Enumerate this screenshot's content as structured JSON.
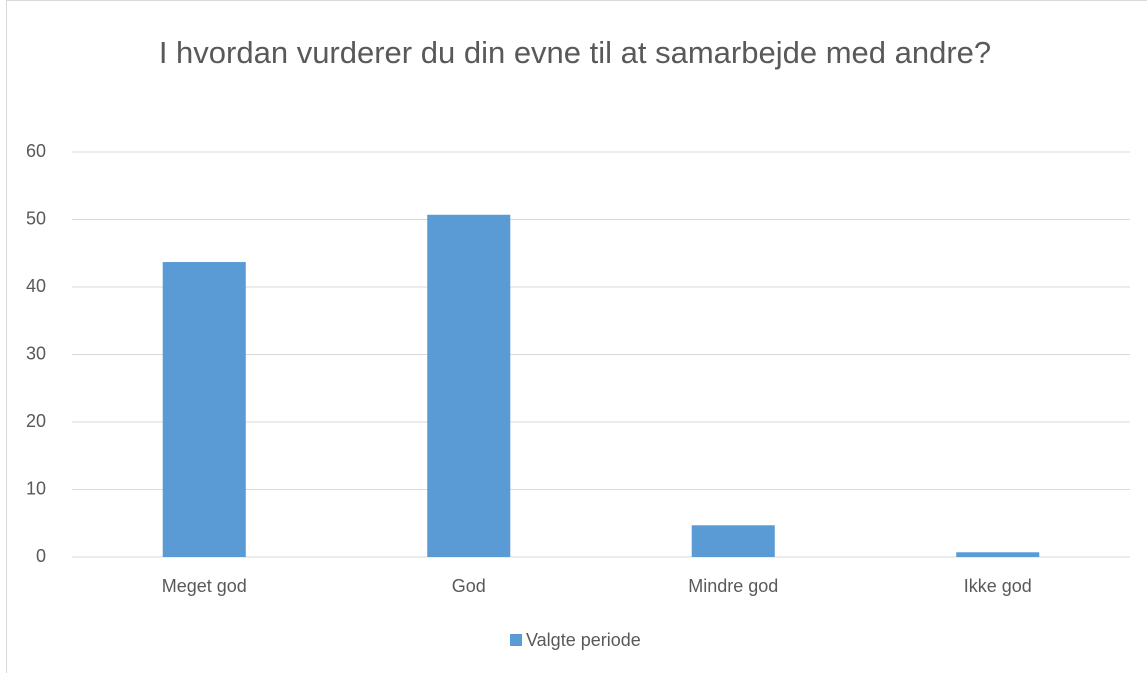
{
  "chart_data": {
    "type": "bar",
    "title": "I hvordan vurderer du din evne til at samarbejde med andre?",
    "categories": [
      "Meget god",
      "God",
      "Mindre god",
      "Ikke god"
    ],
    "series": [
      {
        "name": "Valgte periode",
        "color": "#5b9bd5",
        "values": [
          43.7,
          50.7,
          4.7,
          0.7
        ]
      }
    ],
    "ylim": [
      0,
      60
    ],
    "yticks": [
      0,
      10,
      20,
      30,
      40,
      50,
      60
    ],
    "grid": true,
    "legend": "bottom"
  }
}
